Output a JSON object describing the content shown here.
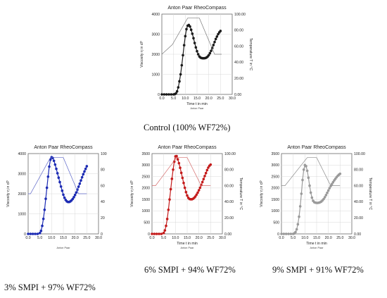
{
  "captions": {
    "control": "Control (100% WF72%)",
    "smpi3": "3% SMPI + 97% WF72%",
    "smpi6": "6% SMPI + 94% WF72%",
    "smpi9": "9% SMPI + 91% WF72%"
  },
  "chart_data": [
    {
      "id": "control",
      "type": "line",
      "title": "Anton Paar RheoCompass",
      "xlabel": "Time  t in min",
      "ylabel_left": "Viscosity  η in cP",
      "ylabel_right": "Temperature  T in °C",
      "brand": "Anton Paar",
      "xlim": [
        0,
        30
      ],
      "xticks": [
        "0.0",
        "5.0",
        "10.0",
        "15.0",
        "20.0",
        "25.0",
        "30.0"
      ],
      "ylim_left": [
        0,
        4000
      ],
      "yticks_left": [
        "0",
        "1000",
        "2000",
        "3000",
        "4000"
      ],
      "ylim_right": [
        0,
        100
      ],
      "yticks_right": [
        "0.00",
        "20.00",
        "40.00",
        "60.00",
        "80.00",
        "100.00"
      ],
      "series": [
        {
          "color": "#1a1a1a",
          "axis": "left",
          "x": [
            0.0,
            1.0,
            2.0,
            3.0,
            4.0,
            5.0,
            5.5,
            6.0,
            6.5,
            7.0,
            7.5,
            8.0,
            8.5,
            9.0,
            9.5,
            10.0,
            10.5,
            11.0,
            11.5,
            12.0,
            12.5,
            13.0,
            13.5,
            14.0,
            14.5,
            15.0,
            15.5,
            16.0,
            16.5,
            17.0,
            17.5,
            18.0,
            18.5,
            19.0,
            19.5,
            20.0,
            20.5,
            21.0,
            21.5,
            22.0,
            22.5,
            23.0,
            23.5,
            24.0,
            24.5,
            25.0
          ],
          "y": [
            0,
            0,
            0,
            0,
            0,
            0,
            10,
            50,
            150,
            350,
            650,
            1000,
            1450,
            1950,
            2450,
            2900,
            3250,
            3420,
            3460,
            3380,
            3220,
            3020,
            2800,
            2560,
            2340,
            2150,
            2000,
            1890,
            1830,
            1810,
            1800,
            1800,
            1810,
            1830,
            1880,
            1950,
            2050,
            2170,
            2310,
            2460,
            2610,
            2760,
            2880,
            3000,
            3090,
            3160
          ]
        },
        {
          "color": "#7a7a7a",
          "axis": "right",
          "x": [
            0.0,
            4.5,
            11.0,
            16.0,
            22.5,
            25.5
          ],
          "y": [
            50,
            62,
            95,
            95,
            50,
            50
          ]
        }
      ]
    },
    {
      "id": "smpi3",
      "type": "line",
      "title": "Anton Paar RheoCompass",
      "xlabel": "",
      "ylabel_left": "Viscosity  η in cP",
      "ylabel_right": "",
      "brand": "Anton Paar",
      "xlim": [
        0,
        30
      ],
      "xticks": [
        "0.0",
        "5.0",
        "10.0",
        "15.0",
        "20.0",
        "25.0",
        "30.0"
      ],
      "ylim_left": [
        0,
        4000
      ],
      "yticks_left": [
        "0",
        "1000",
        "2000",
        "3000",
        "4000"
      ],
      "ylim_right": [
        0,
        100
      ],
      "yticks_right": [
        "0",
        "20",
        "40",
        "60",
        "80",
        "100"
      ],
      "series": [
        {
          "color": "#1c2bb3",
          "axis": "left",
          "x": [
            0.0,
            1.0,
            2.0,
            3.0,
            4.0,
            5.0,
            5.5,
            6.0,
            6.5,
            7.0,
            7.5,
            8.0,
            8.5,
            9.0,
            9.5,
            10.0,
            10.5,
            11.0,
            11.5,
            12.0,
            12.5,
            13.0,
            13.5,
            14.0,
            14.5,
            15.0,
            15.5,
            16.0,
            16.5,
            17.0,
            17.5,
            18.0,
            18.5,
            19.0,
            19.5,
            20.0,
            20.5,
            21.0,
            21.5,
            22.0,
            22.5,
            23.0,
            23.5,
            24.0,
            24.5,
            25.0
          ],
          "y": [
            0,
            0,
            0,
            0,
            0,
            40,
            150,
            400,
            750,
            1200,
            1750,
            2300,
            2850,
            3350,
            3700,
            3820,
            3780,
            3640,
            3450,
            3240,
            3020,
            2800,
            2580,
            2360,
            2150,
            1950,
            1800,
            1690,
            1620,
            1590,
            1590,
            1620,
            1670,
            1740,
            1830,
            1940,
            2060,
            2200,
            2350,
            2500,
            2660,
            2820,
            2970,
            3110,
            3240,
            3370
          ]
        },
        {
          "color": "#5c66c8",
          "axis": "right",
          "x": [
            0.0,
            1.0,
            9.5,
            15.0,
            21.5,
            25.0
          ],
          "y": [
            50,
            50,
            95,
            95,
            50,
            50
          ]
        }
      ]
    },
    {
      "id": "smpi6",
      "type": "line",
      "title": "Anton Paar RheoCompass",
      "xlabel": "Time  t in min",
      "ylabel_left": "Viscosity  η in cP",
      "ylabel_right": "Temperature  T in °C",
      "brand": "Anton Paar",
      "xlim": [
        0,
        30
      ],
      "xticks": [
        "0.0",
        "5.0",
        "10.0",
        "15.0",
        "20.0",
        "25.0",
        "30.0"
      ],
      "ylim_left": [
        0,
        3500
      ],
      "yticks_left": [
        "0",
        "500",
        "1000",
        "1500",
        "2000",
        "2500",
        "3000",
        "3500"
      ],
      "ylim_right": [
        0,
        100
      ],
      "yticks_right": [
        "0.00",
        "20.00",
        "40.00",
        "60.00",
        "80.00",
        "100.00"
      ],
      "series": [
        {
          "color": "#c41b1b",
          "axis": "left",
          "x": [
            0.0,
            1.0,
            2.0,
            3.0,
            4.0,
            5.0,
            5.5,
            6.0,
            6.5,
            7.0,
            7.5,
            8.0,
            8.5,
            9.0,
            9.5,
            10.0,
            10.5,
            11.0,
            11.5,
            12.0,
            12.5,
            13.0,
            13.5,
            14.0,
            14.5,
            15.0,
            15.5,
            16.0,
            16.5,
            17.0,
            17.5,
            18.0,
            18.5,
            19.0,
            19.5,
            20.0,
            20.5,
            21.0,
            21.5,
            22.0,
            22.5,
            23.0,
            23.5,
            24.0,
            24.5,
            25.0
          ],
          "y": [
            0,
            0,
            0,
            0,
            0,
            40,
            150,
            350,
            650,
            1050,
            1500,
            1950,
            2400,
            2800,
            3150,
            3380,
            3390,
            3250,
            3080,
            2880,
            2660,
            2440,
            2220,
            2010,
            1820,
            1670,
            1570,
            1520,
            1510,
            1510,
            1530,
            1570,
            1630,
            1710,
            1800,
            1900,
            2010,
            2130,
            2260,
            2390,
            2520,
            2650,
            2780,
            2890,
            2970,
            3020
          ]
        },
        {
          "color": "#d46a6a",
          "axis": "right",
          "x": [
            0.0,
            1.5,
            10.5,
            15.0,
            21.0,
            25.0
          ],
          "y": [
            60,
            60,
            95,
            95,
            60,
            60
          ]
        }
      ]
    },
    {
      "id": "smpi9",
      "type": "line",
      "title": "Anton Paar RheoCompass",
      "xlabel": "Time  t in min",
      "ylabel_left": "Viscosity  η in cP",
      "ylabel_right": "Temperature  T in °C",
      "brand": "Anton Paar",
      "xlim": [
        0,
        30
      ],
      "xticks": [
        "0.0",
        "5.0",
        "10.0",
        "15.0",
        "20.0",
        "25.0",
        "30.0"
      ],
      "ylim_left": [
        0,
        3500
      ],
      "yticks_left": [
        "0",
        "500",
        "1000",
        "1500",
        "2000",
        "2500",
        "3000",
        "3500"
      ],
      "ylim_right": [
        0,
        100
      ],
      "yticks_right": [
        "0.00",
        "20.00",
        "40.00",
        "60.00",
        "80.00",
        "100.00"
      ],
      "series": [
        {
          "color": "#9a9a9a",
          "axis": "left",
          "x": [
            0.0,
            1.0,
            2.0,
            3.0,
            4.0,
            5.0,
            5.5,
            6.0,
            6.5,
            7.0,
            7.5,
            8.0,
            8.5,
            9.0,
            9.5,
            10.0,
            10.5,
            11.0,
            11.5,
            12.0,
            12.5,
            13.0,
            13.5,
            14.0,
            14.5,
            15.0,
            15.5,
            16.0,
            16.5,
            17.0,
            17.5,
            18.0,
            18.5,
            19.0,
            19.5,
            20.0,
            20.5,
            21.0,
            21.5,
            22.0,
            22.5,
            23.0,
            23.5,
            24.0,
            24.5,
            25.0
          ],
          "y": [
            0,
            0,
            0,
            0,
            0,
            0,
            20,
            80,
            200,
            420,
            750,
            1200,
            1750,
            2350,
            2800,
            3000,
            2950,
            2750,
            2450,
            2100,
            1800,
            1580,
            1440,
            1380,
            1360,
            1350,
            1350,
            1360,
            1380,
            1410,
            1460,
            1520,
            1600,
            1690,
            1790,
            1890,
            1990,
            2080,
            2170,
            2250,
            2330,
            2400,
            2470,
            2530,
            2580,
            2620
          ]
        },
        {
          "color": "#8a8a8a",
          "axis": "right",
          "x": [
            0.0,
            1.5,
            11.0,
            15.0,
            21.0,
            25.0
          ],
          "y": [
            60,
            60,
            95,
            95,
            60,
            60
          ]
        }
      ]
    }
  ]
}
